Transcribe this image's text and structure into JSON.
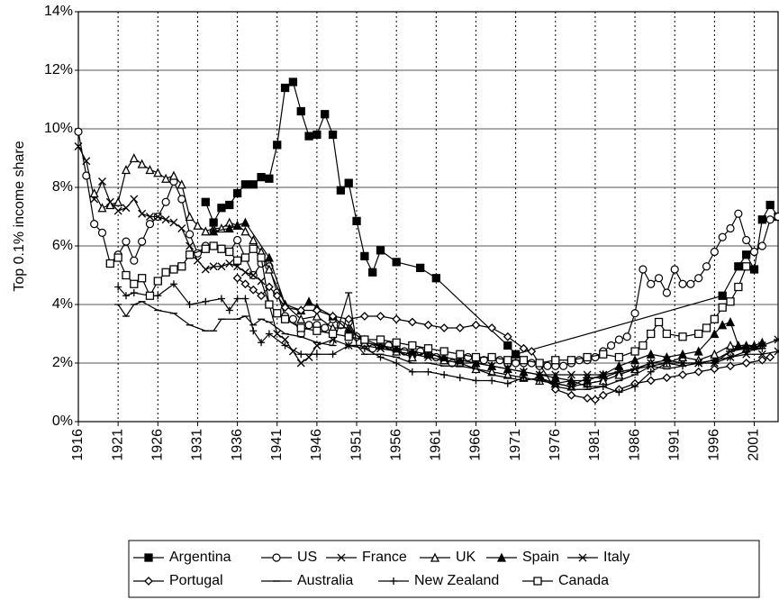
{
  "chart_data": {
    "type": "line",
    "ylabel": "Top 0.1% income share",
    "xlim": [
      1916,
      2004
    ],
    "xticks": [
      1916,
      1921,
      1926,
      1931,
      1936,
      1941,
      1946,
      1951,
      1956,
      1961,
      1966,
      1971,
      1976,
      1981,
      1986,
      1991,
      1996,
      2001
    ],
    "ylim": [
      0,
      14
    ],
    "yticks": [
      {
        "value": 0,
        "label": "0%"
      },
      {
        "value": 2,
        "label": "2%"
      },
      {
        "value": 4,
        "label": "4%"
      },
      {
        "value": 6,
        "label": "6%"
      },
      {
        "value": 8,
        "label": "8%"
      },
      {
        "value": 10,
        "label": "10%"
      },
      {
        "value": 12,
        "label": "12%"
      },
      {
        "value": 14,
        "label": "14%"
      }
    ],
    "grid": true,
    "legend": "bottom",
    "series": [
      {
        "name": "Argentina",
        "color": "#000000",
        "marker": "filled-square",
        "x": [
          1932,
          1933,
          1934,
          1935,
          1936,
          1937,
          1938,
          1939,
          1940,
          1941,
          1942,
          1943,
          1944,
          1945,
          1946,
          1947,
          1948,
          1949,
          1950,
          1951,
          1952,
          1953,
          1954,
          1956,
          1959,
          1961,
          1970,
          1971,
          1997,
          1999,
          2000,
          2001,
          2002,
          2003,
          2004
        ],
        "values": [
          7.5,
          6.8,
          7.3,
          7.4,
          7.8,
          8.1,
          8.1,
          8.35,
          8.3,
          9.45,
          11.4,
          11.6,
          10.6,
          9.75,
          9.8,
          10.5,
          9.8,
          7.9,
          8.15,
          6.85,
          5.65,
          5.1,
          5.85,
          5.45,
          5.25,
          4.9,
          2.6,
          2.3,
          4.3,
          5.3,
          5.7,
          5.2,
          6.9,
          7.4,
          7.0
        ]
      },
      {
        "name": "US",
        "color": "#000000",
        "marker": "open-circle",
        "x": [
          1916,
          1917,
          1918,
          1919,
          1920,
          1921,
          1922,
          1923,
          1924,
          1925,
          1926,
          1927,
          1928,
          1929,
          1930,
          1931,
          1932,
          1933,
          1934,
          1935,
          1936,
          1937,
          1938,
          1939,
          1940,
          1941,
          1942,
          1943,
          1944,
          1945,
          1946,
          1947,
          1948,
          1949,
          1950,
          1951,
          1952,
          1953,
          1954,
          1955,
          1956,
          1957,
          1958,
          1959,
          1960,
          1961,
          1962,
          1963,
          1964,
          1965,
          1966,
          1967,
          1968,
          1969,
          1970,
          1971,
          1972,
          1973,
          1974,
          1975,
          1976,
          1977,
          1978,
          1979,
          1980,
          1981,
          1982,
          1983,
          1984,
          1985,
          1986,
          1987,
          1988,
          1989,
          1990,
          1991,
          1992,
          1993,
          1994,
          1995,
          1996,
          1997,
          1998,
          1999,
          2000,
          2001,
          2002,
          2003,
          2004
        ],
        "values": [
          9.9,
          8.4,
          6.75,
          6.45,
          5.4,
          5.7,
          6.15,
          5.5,
          6.15,
          6.75,
          7.0,
          7.5,
          8.2,
          7.6,
          6.4,
          5.75,
          6.0,
          6.0,
          5.9,
          5.8,
          6.2,
          5.6,
          5.0,
          5.4,
          5.3,
          4.4,
          3.6,
          3.5,
          3.0,
          3.3,
          3.3,
          3.2,
          3.5,
          3.3,
          3.4,
          2.9,
          2.7,
          2.5,
          2.7,
          2.6,
          2.5,
          2.4,
          2.3,
          2.4,
          2.3,
          2.2,
          2.1,
          2.0,
          2.1,
          2.2,
          2.1,
          2.1,
          2.2,
          2.1,
          2.0,
          2.0,
          2.0,
          2.0,
          1.9,
          1.9,
          1.9,
          1.9,
          2.0,
          2.1,
          2.1,
          2.2,
          2.4,
          2.6,
          2.8,
          2.9,
          3.7,
          5.2,
          4.7,
          4.9,
          4.4,
          5.2,
          4.7,
          4.7,
          4.9,
          5.3,
          5.8,
          6.3,
          6.6,
          7.1,
          6.2,
          5.8,
          6.0,
          6.9,
          7.0
        ]
      },
      {
        "name": "France",
        "color": "#000000",
        "marker": "x",
        "x": [
          1916,
          1917,
          1918,
          1919,
          1920,
          1921,
          1922,
          1923,
          1924,
          1925,
          1926,
          1927,
          1928,
          1929,
          1930,
          1931,
          1932,
          1933,
          1934,
          1935,
          1936,
          1937,
          1938,
          1939,
          1940,
          1941,
          1942,
          1943,
          1944,
          1945,
          1946,
          1948,
          1950,
          1952,
          1954,
          1956,
          1958,
          1960,
          1962,
          1964,
          1966,
          1968,
          1970,
          1972,
          1974,
          1976,
          1978,
          1980,
          1982,
          1984,
          1986,
          1988,
          1990,
          1992,
          1994,
          1996,
          1998,
          2000,
          2002,
          2004
        ],
        "values": [
          9.4,
          8.9,
          7.6,
          8.2,
          7.5,
          7.2,
          7.3,
          7.6,
          7.1,
          7.0,
          7.0,
          6.9,
          6.8,
          6.6,
          6.0,
          5.5,
          5.2,
          5.3,
          5.3,
          5.4,
          5.3,
          5.1,
          5.0,
          4.8,
          4.0,
          3.0,
          2.8,
          2.4,
          2.0,
          2.2,
          2.6,
          2.8,
          2.6,
          2.6,
          2.5,
          2.4,
          2.3,
          2.2,
          2.1,
          2.0,
          2.0,
          1.9,
          1.8,
          1.7,
          1.6,
          1.6,
          1.6,
          1.6,
          1.6,
          1.7,
          1.8,
          1.9,
          2.0,
          2.0,
          2.0,
          2.1,
          2.2,
          2.3,
          2.3,
          2.4
        ]
      },
      {
        "name": "UK",
        "color": "#000000",
        "marker": "open-triangle",
        "x": [
          1918,
          1919,
          1920,
          1921,
          1922,
          1923,
          1924,
          1925,
          1926,
          1927,
          1928,
          1929,
          1930,
          1931,
          1932,
          1933,
          1934,
          1935,
          1936,
          1937,
          1938,
          1939,
          1940,
          1942,
          1944,
          1946,
          1948,
          1950,
          1952,
          1954,
          1956,
          1958,
          1960,
          1962,
          1964,
          1966,
          1968,
          1970,
          1972,
          1974,
          1976,
          1978,
          1980,
          1982,
          1984,
          1986,
          1988,
          1990,
          1992,
          1994,
          1996,
          1998,
          2000
        ],
        "values": [
          7.8,
          7.3,
          7.4,
          7.5,
          8.6,
          9.0,
          8.8,
          8.6,
          8.5,
          8.3,
          8.4,
          8.1,
          7.0,
          6.7,
          6.5,
          6.6,
          6.6,
          6.8,
          6.7,
          6.5,
          6.2,
          5.8,
          5.2,
          4.0,
          3.5,
          3.6,
          3.2,
          3.2,
          2.7,
          2.6,
          2.4,
          2.2,
          2.4,
          2.1,
          2.0,
          1.8,
          1.7,
          1.6,
          1.5,
          1.4,
          1.3,
          1.2,
          1.3,
          1.4,
          1.6,
          1.8,
          2.0,
          2.0,
          2.2,
          2.1,
          2.3,
          2.6,
          2.5
        ]
      },
      {
        "name": "Spain",
        "color": "#000000",
        "marker": "filled-triangle",
        "x": [
          1933,
          1935,
          1936,
          1937,
          1940,
          1942,
          1944,
          1945,
          1946,
          1948,
          1950,
          1952,
          1954,
          1956,
          1958,
          1960,
          1962,
          1964,
          1966,
          1968,
          1970,
          1972,
          1974,
          1976,
          1978,
          1980,
          1982,
          1984,
          1986,
          1988,
          1990,
          1992,
          1994,
          1996,
          1997,
          1998,
          1999,
          2000,
          2001,
          2002
        ],
        "values": [
          6.5,
          6.6,
          6.7,
          6.8,
          5.6,
          4.0,
          3.8,
          4.1,
          3.9,
          3.6,
          3.1,
          2.8,
          2.6,
          2.5,
          2.4,
          2.3,
          2.2,
          2.1,
          2.0,
          1.9,
          1.8,
          1.7,
          1.6,
          1.5,
          1.4,
          1.4,
          1.6,
          1.9,
          2.1,
          2.3,
          2.2,
          2.3,
          2.4,
          3.0,
          3.3,
          3.4,
          2.6,
          2.6,
          2.6,
          2.7
        ]
      },
      {
        "name": "Italy",
        "color": "#000000",
        "marker": "asterisk",
        "x": [
          1974,
          1976,
          1978,
          1980,
          1982,
          1984,
          1986,
          1988,
          1990,
          1992,
          1994,
          1996,
          1998,
          2000,
          2002,
          2004
        ],
        "values": [
          1.5,
          1.3,
          1.2,
          1.5,
          1.5,
          1.7,
          1.8,
          2.0,
          2.1,
          2.0,
          2.0,
          2.0,
          2.4,
          2.5,
          2.6,
          2.8
        ]
      },
      {
        "name": "Portugal",
        "color": "#000000",
        "marker": "open-diamond",
        "x": [
          1936,
          1937,
          1938,
          1939,
          1940,
          1941,
          1942,
          1944,
          1946,
          1948,
          1950,
          1952,
          1954,
          1956,
          1958,
          1960,
          1962,
          1964,
          1966,
          1968,
          1970,
          1972,
          1973,
          1976,
          1978,
          1980,
          1981,
          1982,
          1984,
          1986,
          1988,
          1990,
          1992,
          1994,
          1996,
          1998,
          2000,
          2002,
          2003
        ],
        "values": [
          4.9,
          4.7,
          4.5,
          4.3,
          4.6,
          4.3,
          3.9,
          3.8,
          3.8,
          3.6,
          3.5,
          3.6,
          3.6,
          3.5,
          3.4,
          3.3,
          3.2,
          3.2,
          3.3,
          3.2,
          2.9,
          2.5,
          2.4,
          1.1,
          0.9,
          0.8,
          0.75,
          0.9,
          1.1,
          1.3,
          1.4,
          1.5,
          1.6,
          1.7,
          1.8,
          1.9,
          2.0,
          2.1,
          2.2
        ]
      },
      {
        "name": "Australia",
        "color": "#000000",
        "marker": "dash",
        "x": [
          1921,
          1922,
          1923,
          1924,
          1926,
          1928,
          1930,
          1932,
          1933,
          1934,
          1936,
          1937,
          1938,
          1939,
          1940,
          1942,
          1944,
          1946,
          1948,
          1950,
          1951,
          1952,
          1954,
          1956,
          1958,
          1960,
          1962,
          1964,
          1966,
          1968,
          1970,
          1972,
          1974,
          1976,
          1978,
          1980,
          1982,
          1984,
          1986,
          1988,
          1990,
          1992,
          1994,
          1996,
          1998,
          2000,
          2002
        ],
        "values": [
          4.0,
          3.6,
          4.0,
          4.1,
          3.8,
          3.7,
          3.3,
          3.1,
          3.1,
          3.5,
          3.5,
          3.6,
          3.3,
          3.5,
          3.4,
          3.0,
          2.9,
          2.7,
          2.6,
          4.4,
          2.6,
          2.3,
          2.3,
          2.2,
          2.0,
          2.0,
          1.9,
          1.9,
          1.8,
          1.6,
          1.5,
          1.4,
          1.5,
          1.2,
          1.1,
          1.1,
          1.2,
          1.4,
          1.6,
          1.9,
          1.8,
          1.9,
          2.0,
          2.1,
          2.4,
          2.6,
          2.5
        ]
      },
      {
        "name": "New Zealand",
        "color": "#000000",
        "marker": "plus",
        "x": [
          1921,
          1922,
          1923,
          1925,
          1926,
          1928,
          1930,
          1932,
          1934,
          1935,
          1936,
          1937,
          1938,
          1939,
          1940,
          1942,
          1944,
          1946,
          1948,
          1950,
          1952,
          1954,
          1956,
          1958,
          1960,
          1962,
          1964,
          1966,
          1968,
          1970,
          1972,
          1974,
          1976,
          1978,
          1980,
          1982,
          1984,
          1986,
          1988,
          1990,
          1992,
          1994,
          1996,
          1998,
          2000,
          2002
        ],
        "values": [
          4.6,
          4.3,
          4.4,
          4.3,
          4.3,
          4.7,
          4.0,
          4.1,
          4.2,
          3.8,
          4.2,
          4.2,
          3.1,
          2.7,
          3.0,
          2.6,
          2.3,
          2.3,
          2.3,
          2.6,
          2.5,
          2.2,
          2.0,
          1.7,
          1.7,
          1.6,
          1.5,
          1.4,
          1.4,
          1.3,
          1.5,
          1.4,
          1.3,
          1.4,
          1.2,
          1.2,
          1.0,
          1.2,
          1.7,
          2.0,
          1.9,
          2.0,
          2.0,
          2.2,
          2.4,
          2.5
        ]
      },
      {
        "name": "Canada",
        "color": "#000000",
        "marker": "open-square",
        "x": [
          1920,
          1921,
          1922,
          1923,
          1924,
          1925,
          1926,
          1927,
          1928,
          1929,
          1930,
          1932,
          1933,
          1934,
          1935,
          1936,
          1937,
          1938,
          1939,
          1940,
          1941,
          1942,
          1944,
          1946,
          1948,
          1950,
          1952,
          1954,
          1956,
          1958,
          1960,
          1962,
          1964,
          1966,
          1968,
          1970,
          1972,
          1974,
          1976,
          1978,
          1980,
          1982,
          1984,
          1986,
          1987,
          1988,
          1989,
          1990,
          1992,
          1994,
          1995,
          1996,
          1997,
          1998,
          1999,
          2000
        ],
        "values": [
          5.4,
          5.6,
          5.0,
          4.7,
          4.9,
          4.3,
          4.8,
          5.1,
          5.2,
          5.3,
          5.7,
          5.9,
          6.0,
          5.9,
          5.8,
          5.5,
          5.6,
          5.9,
          5.6,
          4.0,
          3.7,
          3.5,
          3.2,
          3.1,
          3.0,
          2.9,
          2.8,
          2.8,
          2.7,
          2.6,
          2.5,
          2.4,
          2.3,
          2.2,
          2.2,
          2.1,
          2.1,
          2.0,
          2.1,
          2.1,
          2.2,
          2.3,
          2.2,
          2.4,
          2.6,
          3.0,
          3.4,
          3.0,
          2.9,
          3.0,
          3.2,
          3.5,
          3.9,
          4.1,
          4.6,
          5.3
        ]
      }
    ]
  }
}
